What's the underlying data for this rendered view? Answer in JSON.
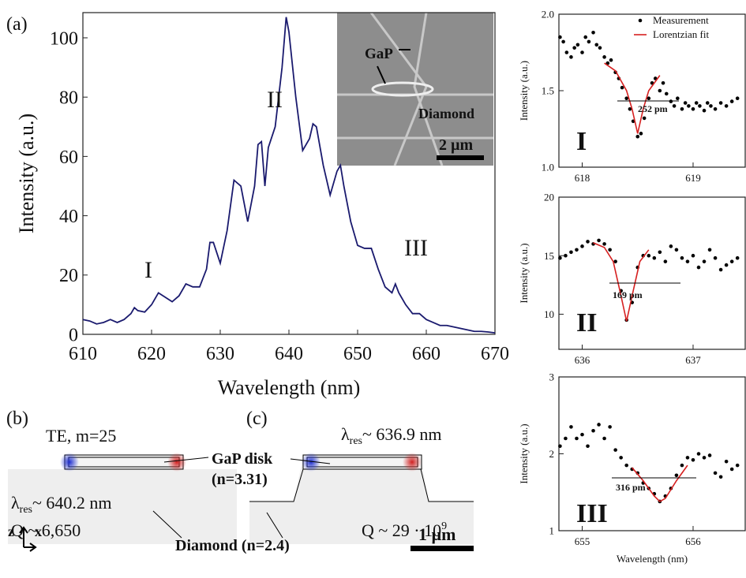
{
  "chart_data": [
    {
      "type": "line",
      "panel": "(a)",
      "xlabel": "Wavelength (nm)",
      "ylabel": "Intensity (a.u.)",
      "x": [
        610,
        611,
        612,
        613,
        614,
        615,
        616,
        617,
        617.5,
        618,
        619,
        620,
        621,
        622,
        623,
        624,
        625,
        626,
        627,
        628,
        628.5,
        629,
        630,
        631,
        632,
        633,
        634,
        635,
        635.5,
        636,
        636.5,
        637,
        638,
        639,
        639.6,
        640,
        641,
        642,
        643,
        643.5,
        644,
        645,
        646,
        647,
        647.5,
        648,
        649,
        650,
        651,
        652,
        653,
        654,
        655,
        655.5,
        656,
        657,
        658,
        659,
        660,
        661,
        662,
        663,
        664,
        665,
        666,
        667,
        668,
        669,
        670
      ],
      "series": [
        {
          "color": "#1a1a6e",
          "values": [
            5,
            4.5,
            3.5,
            4,
            5,
            4,
            5,
            7,
            9,
            8,
            7.5,
            10,
            14,
            12.5,
            11,
            13,
            17,
            16,
            16,
            22,
            31,
            31,
            24,
            35,
            52,
            50,
            38,
            50,
            64,
            65,
            50,
            63,
            70,
            90,
            107,
            102,
            80,
            62,
            66,
            71,
            70,
            57,
            47,
            55,
            57,
            50,
            38,
            30,
            29,
            29,
            22,
            16,
            14,
            17,
            14,
            10,
            7,
            7,
            5,
            4,
            3,
            3,
            2.5,
            2,
            1.5,
            1,
            1,
            0.8,
            0.5
          ]
        }
      ],
      "xlim": [
        610,
        670
      ],
      "xticks": [
        610,
        620,
        630,
        640,
        650,
        660,
        670
      ],
      "ylim": [
        0,
        108.5
      ],
      "yticks": [
        0,
        20,
        40,
        60,
        80,
        100
      ],
      "annotations": [
        "I",
        "II",
        "III"
      ],
      "inset_labels": [
        "GaP",
        "Diamond",
        "2 µm"
      ]
    },
    {
      "type": "scatter",
      "ylabel": "Intensity (a.u.)",
      "legend": "upper right",
      "series": [
        {
          "name": "Measurement",
          "color": "#000000",
          "style": "markers",
          "x": [
            617.8,
            617.83,
            617.86,
            617.9,
            617.93,
            617.96,
            618.0,
            618.03,
            618.06,
            618.1,
            618.13,
            618.16,
            618.2,
            618.23,
            618.26,
            618.3,
            618.33,
            618.36,
            618.4,
            618.43,
            618.46,
            618.5,
            618.53,
            618.56,
            618.6,
            618.63,
            618.66,
            618.7,
            618.73,
            618.76,
            618.8,
            618.83,
            618.86,
            618.9,
            618.93,
            618.96,
            619.0,
            619.03,
            619.06,
            619.1,
            619.13,
            619.16,
            619.2,
            619.25,
            619.3,
            619.35,
            619.4
          ],
          "values": [
            1.85,
            1.82,
            1.75,
            1.72,
            1.78,
            1.8,
            1.75,
            1.85,
            1.82,
            1.88,
            1.8,
            1.78,
            1.72,
            1.68,
            1.7,
            1.62,
            1.58,
            1.52,
            1.45,
            1.38,
            1.3,
            1.2,
            1.22,
            1.32,
            1.45,
            1.55,
            1.58,
            1.5,
            1.55,
            1.48,
            1.43,
            1.4,
            1.45,
            1.38,
            1.42,
            1.4,
            1.38,
            1.42,
            1.4,
            1.37,
            1.42,
            1.4,
            1.38,
            1.42,
            1.4,
            1.43,
            1.45
          ]
        },
        {
          "name": "Lorentzian fit",
          "color": "#d62020",
          "style": "line",
          "x": [
            618.2,
            618.3,
            618.4,
            618.45,
            618.5,
            618.55,
            618.6,
            618.7
          ],
          "values": [
            1.68,
            1.63,
            1.5,
            1.38,
            1.22,
            1.38,
            1.5,
            1.6
          ]
        }
      ],
      "xlim": [
        617.79,
        619.47
      ],
      "xticks": [
        618,
        619
      ],
      "ylim": [
        1,
        2
      ],
      "yticks": [
        {
          "value": 1,
          "label": "1.0"
        },
        {
          "value": 1.5,
          "label": "1.5"
        },
        {
          "value": 2,
          "label": "2.0"
        }
      ],
      "annotations": [
        "252 pm",
        "I"
      ]
    },
    {
      "type": "scatter",
      "ylabel": "Intensity (a.u.)",
      "series": [
        {
          "color": "#000000",
          "style": "markers",
          "x": [
            635.8,
            635.85,
            635.9,
            635.95,
            636.0,
            636.05,
            636.1,
            636.15,
            636.2,
            636.25,
            636.3,
            636.35,
            636.4,
            636.45,
            636.5,
            636.55,
            636.6,
            636.65,
            636.7,
            636.75,
            636.8,
            636.85,
            636.9,
            636.95,
            637.0,
            637.05,
            637.1,
            637.15,
            637.2,
            637.25,
            637.3,
            637.35,
            637.4
          ],
          "values": [
            14.8,
            15,
            15.3,
            15.5,
            15.8,
            16.2,
            16,
            16.3,
            16,
            15.5,
            14.5,
            12,
            9.5,
            11,
            14,
            15,
            15,
            14.8,
            15.3,
            14.5,
            15.8,
            15.5,
            14.8,
            14.5,
            15,
            14,
            14.5,
            15.5,
            14.8,
            13.8,
            14.2,
            14.5,
            14.8
          ]
        },
        {
          "color": "#d62020",
          "style": "line",
          "x": [
            636.1,
            636.2,
            636.28,
            636.34,
            636.4,
            636.46,
            636.52,
            636.6
          ],
          "values": [
            16.1,
            15.7,
            14.5,
            12,
            9.4,
            12,
            14.5,
            15.5
          ]
        }
      ],
      "xlim": [
        635.79,
        637.47
      ],
      "xticks": [
        636,
        637
      ],
      "ylim": [
        7,
        20
      ],
      "yticks": [
        10,
        15,
        20
      ],
      "annotations": [
        "169 pm",
        "II"
      ]
    },
    {
      "type": "scatter",
      "ylabel": "Intensity (a.u.)",
      "xlabel": "Wavelength (nm)",
      "series": [
        {
          "color": "#000000",
          "style": "markers",
          "x": [
            654.8,
            654.85,
            654.9,
            654.95,
            655.0,
            655.05,
            655.1,
            655.15,
            655.2,
            655.25,
            655.3,
            655.35,
            655.4,
            655.45,
            655.5,
            655.55,
            655.6,
            655.65,
            655.7,
            655.75,
            655.8,
            655.85,
            655.9,
            655.95,
            656.0,
            656.05,
            656.1,
            656.15,
            656.2,
            656.25,
            656.3,
            656.35,
            656.4
          ],
          "values": [
            2.1,
            2.2,
            2.35,
            2.2,
            2.25,
            2.1,
            2.3,
            2.38,
            2.2,
            2.35,
            2.05,
            1.95,
            1.85,
            1.8,
            1.75,
            1.62,
            1.55,
            1.48,
            1.38,
            1.45,
            1.55,
            1.72,
            1.85,
            1.95,
            1.92,
            2.0,
            1.95,
            1.98,
            1.75,
            1.7,
            1.9,
            1.8,
            1.85
          ]
        },
        {
          "color": "#d62020",
          "style": "line",
          "x": [
            655.45,
            655.55,
            655.65,
            655.7,
            655.75,
            655.85,
            655.95
          ],
          "values": [
            1.82,
            1.65,
            1.45,
            1.38,
            1.42,
            1.65,
            1.85
          ]
        }
      ],
      "xlim": [
        654.79,
        656.47
      ],
      "xticks": [
        655,
        656
      ],
      "ylim": [
        1,
        3
      ],
      "yticks": [
        1,
        2,
        3
      ],
      "annotations": [
        "316 pm",
        "III"
      ]
    }
  ],
  "panel_b": {
    "label": "(b)",
    "mode": "TE, m=25",
    "resonance": {
      "symbol": "λ",
      "subscript": "res",
      "text": "~ 640.2 nm"
    },
    "q": "Q ~ 6,650"
  },
  "panel_c": {
    "label": "(c)",
    "resonance": {
      "symbol": "λ",
      "subscript": "res",
      "text": "~ 636.9 nm"
    },
    "q": {
      "text": "Q ~ 29 · 10",
      "superscript": "9"
    }
  },
  "shared": {
    "disk_label": "GaP disk",
    "disk_index": "(n=3.31)",
    "substrate_label": "Diamond (n=2.4)",
    "scale_bar": "1 µm",
    "axes": [
      "z",
      "x"
    ]
  }
}
